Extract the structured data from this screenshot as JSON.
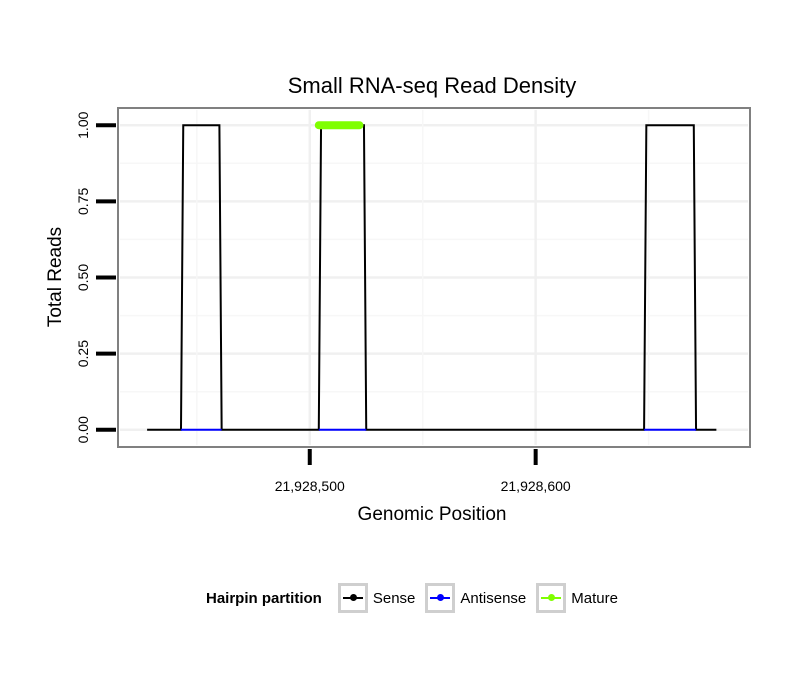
{
  "chart_data": {
    "type": "line",
    "title": "Small RNA-seq Read Density",
    "xlabel": "Genomic Position",
    "ylabel": "Total Reads",
    "xlim": [
      21928416,
      21928694
    ],
    "ylim": [
      -0.05,
      1.05
    ],
    "x_ticks": [
      21928500,
      21928600
    ],
    "x_tick_labels": [
      "21,928,500",
      "21,928,600"
    ],
    "y_ticks": [
      0,
      0.25,
      0.5,
      0.75,
      1.0
    ],
    "y_tick_labels": [
      "0.00",
      "0.25",
      "0.50",
      "0.75",
      "1.00"
    ],
    "grid": true,
    "legend_position": "bottom",
    "legend_title": "Hairpin partition",
    "series": [
      {
        "name": "Sense",
        "color": "#000000",
        "points": [
          [
            21928428,
            0
          ],
          [
            21928443,
            0
          ],
          [
            21928444,
            1
          ],
          [
            21928460,
            1
          ],
          [
            21928461,
            0
          ],
          [
            21928504,
            0
          ],
          [
            21928505,
            1
          ],
          [
            21928524,
            1
          ],
          [
            21928525,
            0
          ],
          [
            21928648,
            0
          ],
          [
            21928649,
            1
          ],
          [
            21928670,
            1
          ],
          [
            21928671,
            0
          ],
          [
            21928680,
            0
          ]
        ]
      },
      {
        "name": "Antisense",
        "color": "#0000ff",
        "points": [
          [
            21928443,
            0
          ],
          [
            21928461,
            0
          ],
          [
            21928504,
            0
          ],
          [
            21928525,
            0
          ],
          [
            21928648,
            0
          ],
          [
            21928671,
            0
          ]
        ],
        "segments": [
          [
            21928443,
            21928461
          ],
          [
            21928504,
            21928525
          ],
          [
            21928648,
            21928671
          ]
        ]
      },
      {
        "name": "Mature",
        "color": "#7fff00",
        "points": [
          [
            21928504,
            1
          ],
          [
            21928522,
            1
          ]
        ]
      }
    ]
  }
}
